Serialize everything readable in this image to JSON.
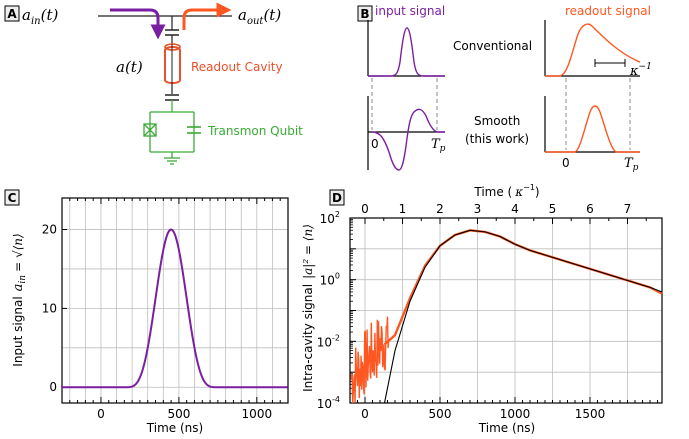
{
  "panel_a": {
    "label": "A",
    "a_in": "a",
    "a_in_sub": "in",
    "a_in_arg": "(t)",
    "a_out": "a",
    "a_out_sub": "out",
    "a_out_arg": "(t)",
    "a_t": "a(t)",
    "readout_label": "Readout Cavity",
    "transmon_label": "Transmon Qubit",
    "colors": {
      "input": "#7b1fa2",
      "output": "#ff5722",
      "cavity": "#e8512a",
      "qubit": "#3aaa35"
    }
  },
  "panel_b": {
    "label": "B",
    "input_title": "input signal",
    "readout_title": "readout signal",
    "row1_label": "Conventional",
    "row2_label_1": "Smooth",
    "row2_label_2": "(this work)",
    "kappa": "κ",
    "kappa_exp": "−1",
    "tick_zero": "0",
    "tick_tp": "T",
    "tick_tp_sub": "p"
  },
  "panel_c": {
    "label": "C",
    "chart_data": {
      "type": "line",
      "xlabel": "Time (ns)",
      "ylabel": "Input signal  a_in = √⟨n⟩",
      "xlim": [
        -250,
        1200
      ],
      "ylim": [
        -2,
        24
      ],
      "xticks": [
        0,
        500,
        1000
      ],
      "yticks": [
        0,
        10,
        20
      ],
      "grid": true,
      "series": [
        {
          "peak": 20,
          "center": 450,
          "start": 150,
          "end": 750,
          "x": [
            150,
            200,
            250,
            300,
            350,
            400,
            450,
            500,
            550,
            600,
            650,
            700,
            750
          ],
          "y": [
            0,
            0.6,
            2.5,
            6.3,
            10.9,
            16.2,
            20,
            16.2,
            10.9,
            6.3,
            2.5,
            0.6,
            0
          ]
        }
      ]
    },
    "xtick_labels": [
      "0",
      "500",
      "1000"
    ],
    "ytick_labels": [
      "0",
      "10",
      "20"
    ],
    "xlabel": "Time (ns)",
    "ylabel_text": "Input signal",
    "ylabel_math": "a",
    "ylabel_sub": "in",
    "ylabel_eq": "= √⟨n⟩"
  },
  "panel_d": {
    "label": "D",
    "chart_data": {
      "type": "line",
      "xlabel": "Time (ns)",
      "x2label": "Time ( κ⁻¹)",
      "ylabel": "Intra-cavity signal |a|² = ⟨n⟩",
      "xlim": [
        -100,
        1980
      ],
      "ylim_log10": [
        -4,
        2
      ],
      "log_y": true,
      "xticks": [
        0,
        500,
        1000,
        1500
      ],
      "x2ticks": [
        0,
        1,
        2,
        3,
        4,
        5,
        6,
        7
      ],
      "grid": true,
      "series": [
        {
          "name": "",
          "color": "#000000",
          "x": [
            130,
            200,
            300,
            400,
            500,
            600,
            700,
            800,
            900,
            1000,
            1100,
            1200,
            1300,
            1400,
            1500,
            1600,
            1700,
            1800,
            1900,
            1980
          ],
          "y_log10": [
            -4,
            -2.3,
            -0.7,
            0.4,
            1.1,
            1.45,
            1.6,
            1.55,
            1.4,
            1.15,
            0.95,
            0.8,
            0.65,
            0.5,
            0.35,
            0.2,
            0.05,
            -0.1,
            -0.25,
            -0.4
          ]
        },
        {
          "name": "",
          "color": "#ff5722",
          "x": [
            -80,
            -20,
            30,
            80,
            130,
            200,
            300,
            400,
            500,
            600,
            700,
            800,
            900,
            1000,
            1100,
            1200,
            1300,
            1400,
            1500,
            1600,
            1700,
            1800,
            1900,
            1980
          ],
          "y_log10": [
            -3.2,
            -2.8,
            -2.4,
            -2.2,
            -2.1,
            -1.8,
            -0.6,
            0.45,
            1.1,
            1.45,
            1.6,
            1.55,
            1.4,
            1.15,
            0.95,
            0.8,
            0.65,
            0.5,
            0.35,
            0.2,
            0.05,
            -0.1,
            -0.25,
            -0.45
          ]
        }
      ]
    },
    "xtick_labels": [
      "0",
      "500",
      "1000",
      "1500"
    ],
    "x2tick_labels": [
      "0",
      "1",
      "2",
      "3",
      "4",
      "5",
      "6",
      "7"
    ],
    "ytick_bases": [
      "10",
      "10",
      "10",
      "10"
    ],
    "ytick_exps": [
      "2",
      "0",
      "-2",
      "-4"
    ],
    "xlabel": "Time (ns)",
    "x2label_pre": "Time (",
    "x2label_kappa": "κ",
    "x2label_exp": "−1",
    "x2label_post": ")",
    "ylabel_text": "Intra-cavity signal",
    "ylabel_math": "|a|² = ⟨n⟩"
  }
}
